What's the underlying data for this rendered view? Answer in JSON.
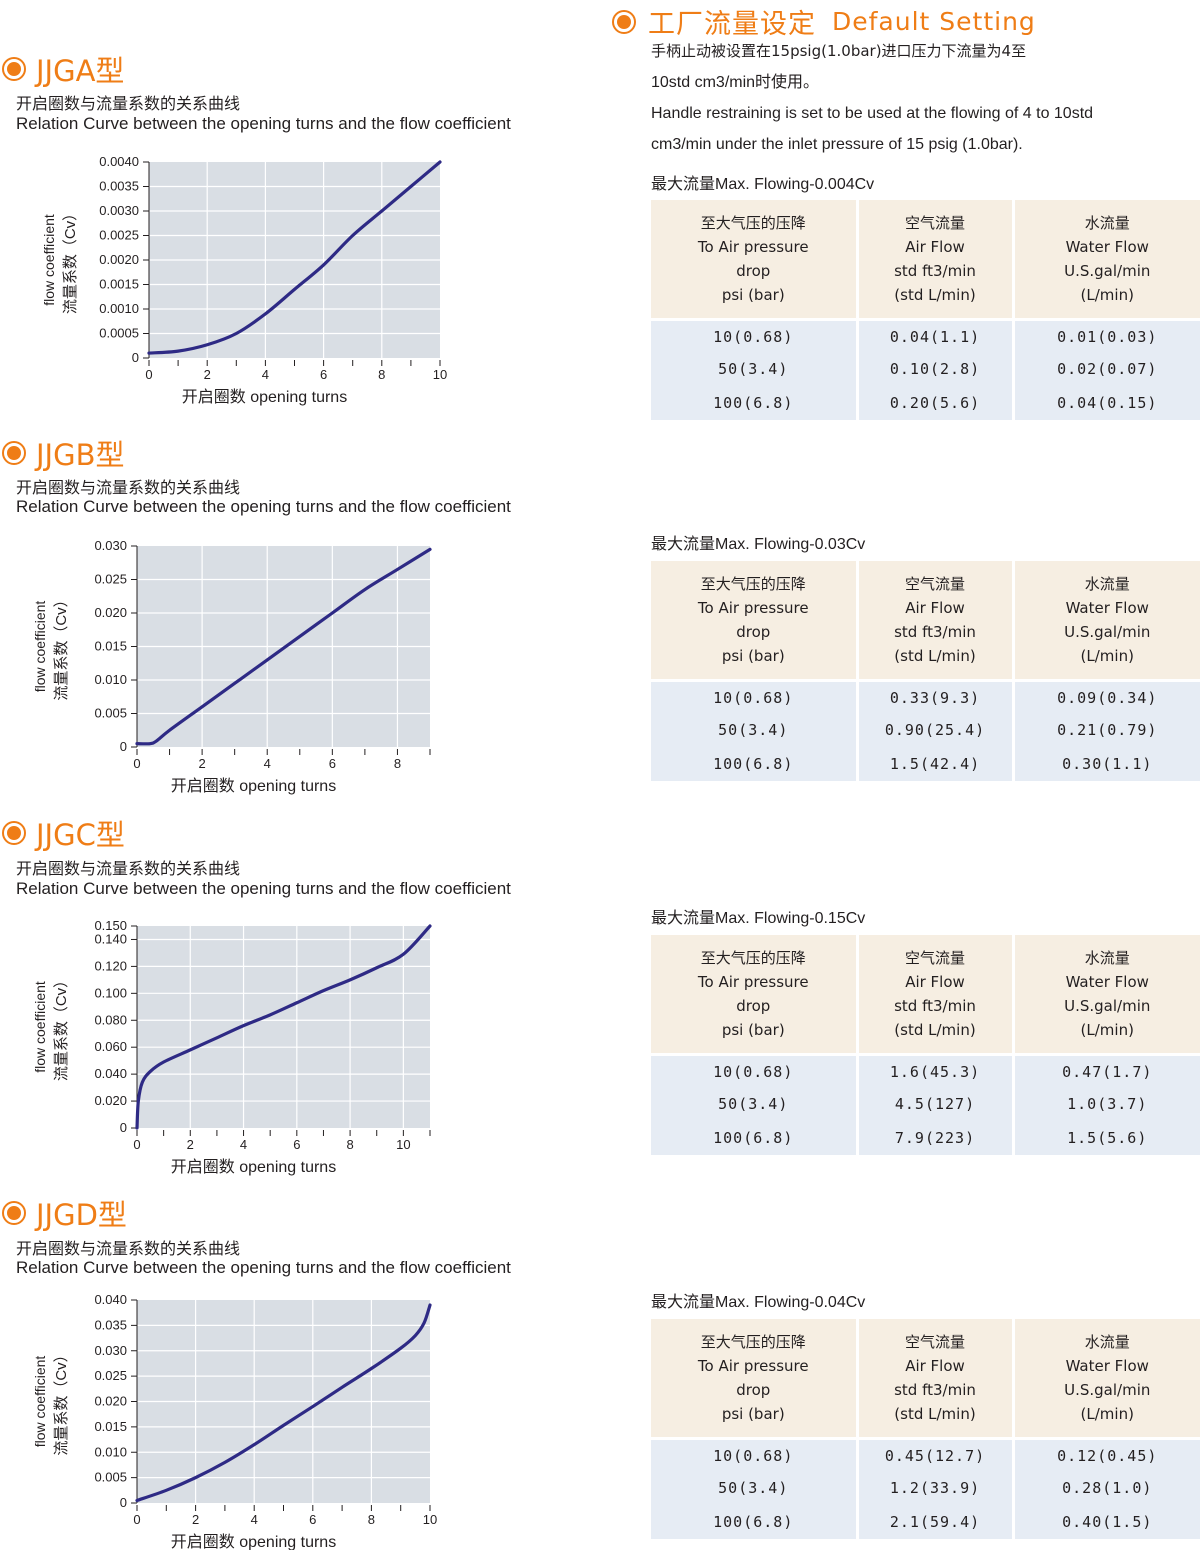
{
  "colors": {
    "accent": "#ef7d16",
    "curve": "#2e2a85",
    "plot_bg": "#d9dee4",
    "header_bg": "#f6eee2",
    "row_bg": "#e6ecf4"
  },
  "charts": [
    {
      "title": "JJGA型",
      "caption_cn": "开启圈数与流量系数的关系曲线",
      "caption_en": "Relation Curve between the opening turns and the flow coefficient",
      "xlabel": "开启圈数 opening turns",
      "ylabel_en": "flow coefficient",
      "ylabel_cn": "流量系数（Cv）"
    },
    {
      "title": "JJGB型",
      "caption_cn": "开启圈数与流量系数的关系曲线",
      "caption_en": "Relation Curve between the opening turns and the flow coefficient",
      "xlabel": "开启圈数 opening turns",
      "ylabel_en": "flow coefficient",
      "ylabel_cn": "流量系数（Cv）"
    },
    {
      "title": "JJGC型",
      "caption_cn": "开启圈数与流量系数的关系曲线",
      "caption_en": "Relation Curve between the opening turns and the flow coefficient",
      "xlabel": "开启圈数 opening turns",
      "ylabel_en": "flow coefficient",
      "ylabel_cn": "流量系数（Cv）"
    },
    {
      "title": "JJGD型",
      "caption_cn": "开启圈数与流量系数的关系曲线",
      "caption_en": "Relation Curve between the opening turns and the flow coefficient",
      "xlabel": "开启圈数 opening turns",
      "ylabel_en": "flow coefficient",
      "ylabel_cn": "流量系数（Cv）"
    }
  ],
  "chart_data": [
    {
      "type": "line",
      "xlim": [
        0,
        10
      ],
      "ylim": [
        0,
        0.004
      ],
      "grid": true,
      "xticks": [
        "0",
        "2",
        "4",
        "6",
        "8",
        "10"
      ],
      "yticks": [
        "0",
        "0.0005",
        "0.0010",
        "0.0015",
        "0.0020",
        "0.0025",
        "0.0030",
        "0.0035",
        "0.0040"
      ],
      "ytick_values": [
        0,
        0.0005,
        0.001,
        0.0015,
        0.002,
        0.0025,
        0.003,
        0.0035,
        0.004
      ],
      "x": [
        0,
        1,
        2,
        3,
        4,
        5,
        6,
        7,
        8,
        9,
        10
      ],
      "y": [
        0.0001,
        0.00014,
        0.00027,
        0.0005,
        0.0009,
        0.0014,
        0.0019,
        0.0025,
        0.003,
        0.0035,
        0.004
      ]
    },
    {
      "type": "line",
      "xlim": [
        0,
        9
      ],
      "ylim": [
        0,
        0.03
      ],
      "grid": true,
      "xticks": [
        "0",
        "2",
        "4",
        "6",
        "8"
      ],
      "yticks": [
        "0",
        "0.005",
        "0.010",
        "0.015",
        "0.020",
        "0.025",
        "0.030"
      ],
      "ytick_values": [
        0,
        0.005,
        0.01,
        0.015,
        0.02,
        0.025,
        0.03
      ],
      "x": [
        0,
        0.4,
        0.6,
        1,
        2,
        3,
        4,
        5,
        6,
        7,
        8,
        9
      ],
      "y": [
        0.0005,
        0.0005,
        0.0009,
        0.0025,
        0.006,
        0.0095,
        0.013,
        0.0165,
        0.02,
        0.0235,
        0.0265,
        0.0295
      ]
    },
    {
      "type": "line",
      "xlim": [
        0,
        11
      ],
      "ylim": [
        0,
        0.15
      ],
      "grid": true,
      "xticks": [
        "0",
        "2",
        "4",
        "6",
        "8",
        "10"
      ],
      "yticks": [
        "0",
        "0.020",
        "0.040",
        "0.060",
        "0.080",
        "0.100",
        "0.120",
        "0.140",
        "0.150"
      ],
      "ytick_values": [
        0,
        0.02,
        0.04,
        0.06,
        0.08,
        0.1,
        0.12,
        0.14,
        0.15
      ],
      "x": [
        0,
        0.05,
        0.2,
        0.5,
        1,
        2,
        3,
        4,
        5,
        6,
        7,
        8,
        9,
        10,
        11
      ],
      "y": [
        0,
        0.02,
        0.034,
        0.042,
        0.049,
        0.058,
        0.067,
        0.076,
        0.084,
        0.093,
        0.102,
        0.11,
        0.119,
        0.129,
        0.15
      ]
    },
    {
      "type": "line",
      "xlim": [
        0,
        10
      ],
      "ylim": [
        0,
        0.04
      ],
      "grid": true,
      "xticks": [
        "0",
        "2",
        "4",
        "6",
        "8",
        "10"
      ],
      "yticks": [
        "0",
        "0.005",
        "0.010",
        "0.015",
        "0.020",
        "0.025",
        "0.030",
        "0.035",
        "0.040"
      ],
      "ytick_values": [
        0,
        0.005,
        0.01,
        0.015,
        0.02,
        0.025,
        0.03,
        0.035,
        0.04
      ],
      "x": [
        0,
        1,
        2,
        3,
        4,
        5,
        6,
        7,
        8,
        9,
        9.5,
        9.8,
        10
      ],
      "y": [
        0.0005,
        0.0025,
        0.005,
        0.008,
        0.0115,
        0.0153,
        0.019,
        0.0228,
        0.0265,
        0.0305,
        0.033,
        0.0355,
        0.039
      ]
    }
  ],
  "default_setting": {
    "title_cn": "工厂流量设定",
    "title_en": "Default Setting",
    "desc_cn_1": "手柄止动被设置在15psig(1.0bar)进口压力下流量为4至",
    "desc_cn_2": "10std cm3/min时使用。",
    "desc_en_1": "Handle restraining is set to be used at the flowing of 4 to 10std",
    "desc_en_2": "cm3/min under the inlet pressure of 15 psig (1.0bar)."
  },
  "tables": [
    {
      "max_flow": "最大流量Max. Flowing-0.004Cv",
      "headers": [
        [
          "至大气压的压降",
          "To Air pressure",
          "drop",
          "psi (bar)"
        ],
        [
          "空气流量",
          "Air Flow",
          "std ft3/min",
          "(std L/min)"
        ],
        [
          "水流量",
          "Water Flow",
          "U.S.gal/min",
          "(L/min)"
        ]
      ],
      "rows": [
        [
          "10(0.68)",
          "0.04(1.1)",
          "0.01(0.03)"
        ],
        [
          "50(3.4)",
          "0.10(2.8)",
          "0.02(0.07)"
        ],
        [
          "100(6.8)",
          "0.20(5.6)",
          "0.04(0.15)"
        ]
      ]
    },
    {
      "max_flow": "最大流量Max. Flowing-0.03Cv",
      "headers": [
        [
          "至大气压的压降",
          "To Air pressure",
          "drop",
          "psi (bar)"
        ],
        [
          "空气流量",
          "Air Flow",
          "std ft3/min",
          "(std L/min)"
        ],
        [
          "水流量",
          "Water Flow",
          "U.S.gal/min",
          "(L/min)"
        ]
      ],
      "rows": [
        [
          "10(0.68)",
          "0.33(9.3)",
          "0.09(0.34)"
        ],
        [
          "50(3.4)",
          "0.90(25.4)",
          "0.21(0.79)"
        ],
        [
          "100(6.8)",
          "1.5(42.4)",
          "0.30(1.1)"
        ]
      ]
    },
    {
      "max_flow": "最大流量Max. Flowing-0.15Cv",
      "headers": [
        [
          "至大气压的压降",
          "To Air pressure",
          "drop",
          "psi (bar)"
        ],
        [
          "空气流量",
          "Air Flow",
          "std ft3/min",
          "(std L/min)"
        ],
        [
          "水流量",
          "Water Flow",
          "U.S.gal/min",
          "(L/min)"
        ]
      ],
      "rows": [
        [
          "10(0.68)",
          "1.6(45.3)",
          "0.47(1.7)"
        ],
        [
          "50(3.4)",
          "4.5(127)",
          "1.0(3.7)"
        ],
        [
          "100(6.8)",
          "7.9(223)",
          "1.5(5.6)"
        ]
      ]
    },
    {
      "max_flow": "最大流量Max. Flowing-0.04Cv",
      "headers": [
        [
          "至大气压的压降",
          "To Air pressure",
          "drop",
          "psi (bar)"
        ],
        [
          "空气流量",
          "Air Flow",
          "std ft3/min",
          "(std L/min)"
        ],
        [
          "水流量",
          "Water Flow",
          "U.S.gal/min",
          "(L/min)"
        ]
      ],
      "rows": [
        [
          "10(0.68)",
          "0.45(12.7)",
          "0.12(0.45)"
        ],
        [
          "50(3.4)",
          "1.2(33.9)",
          "0.28(1.0)"
        ],
        [
          "100(6.8)",
          "2.1(59.4)",
          "0.40(1.5)"
        ]
      ]
    }
  ]
}
